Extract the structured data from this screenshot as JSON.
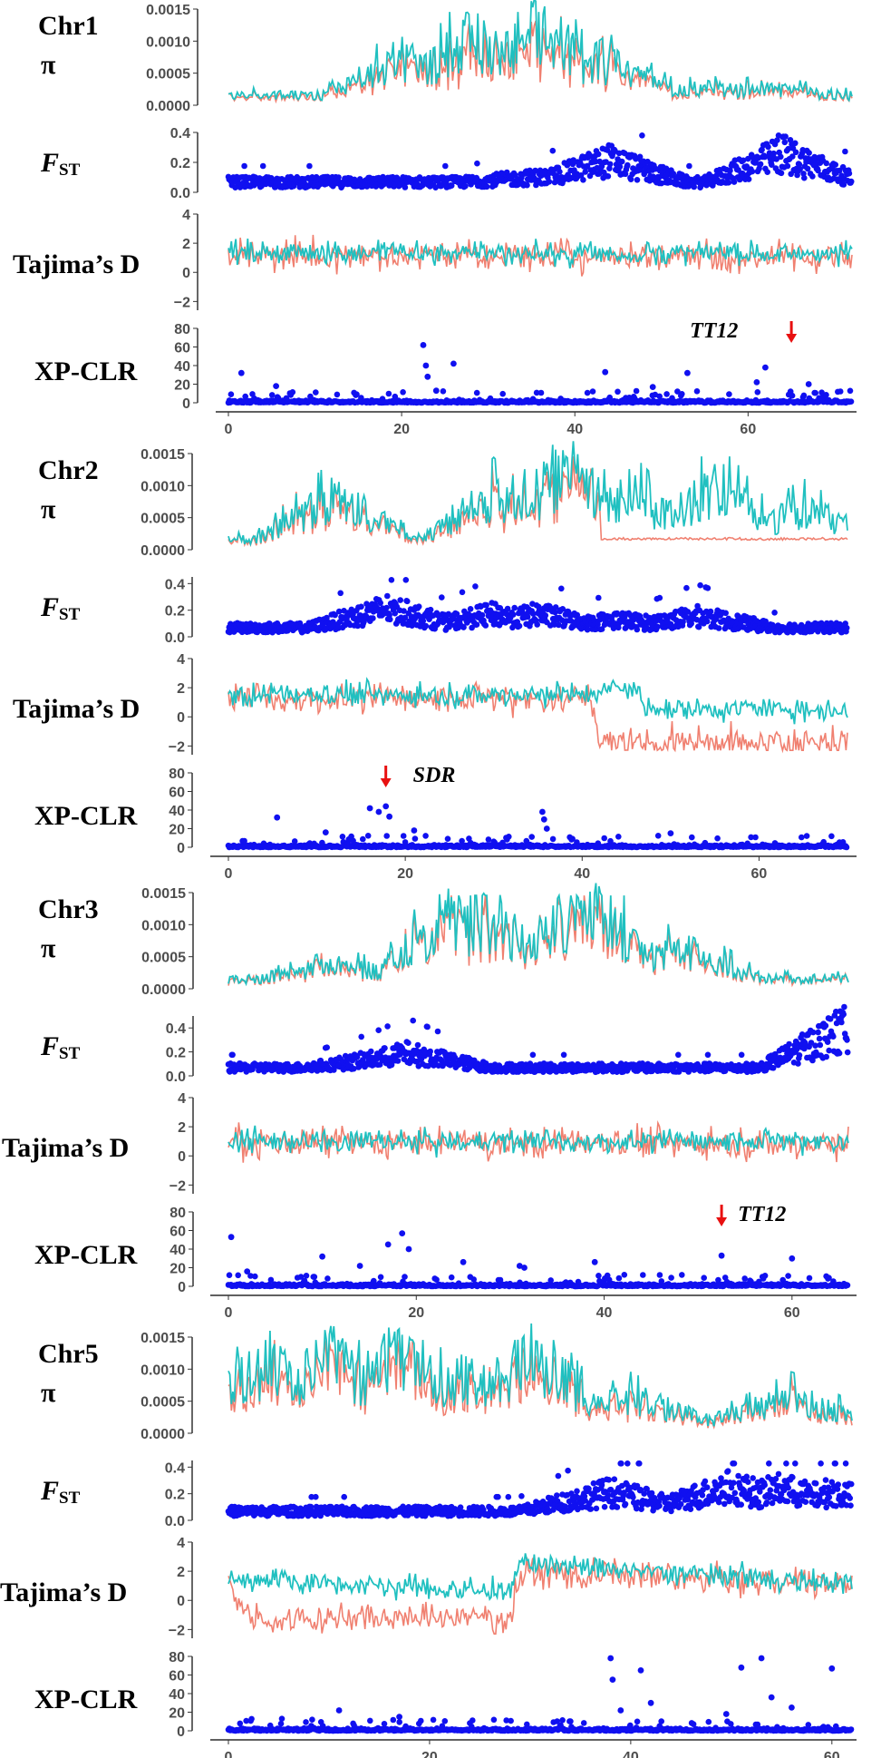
{
  "colors": {
    "pop1": "#f08070",
    "pop2": "#20c0c0",
    "fst": "#1010f0",
    "arrow": "#e81010"
  },
  "chart_data": [
    {
      "type": "line",
      "chromosome": "Chr1",
      "x_max": 72,
      "x_ticks": [
        "0",
        "20",
        "40",
        "60"
      ],
      "panels": {
        "pi": {
          "label": "π",
          "ylim": [
            0,
            0.0015
          ],
          "y_ticks": [
            "0.0000",
            "0.0005",
            "0.0010",
            "0.0015"
          ],
          "y_tick_values": [
            0,
            0.0005,
            0.001,
            0.0015
          ]
        },
        "fst": {
          "label_main": "F",
          "label_sub": "ST",
          "ylim": [
            0,
            0.4
          ],
          "y_ticks": [
            "0.0",
            "0.2",
            "0.4"
          ],
          "y_tick_values": [
            0,
            0.2,
            0.4
          ]
        },
        "tajima": {
          "label": "Tajima’s D",
          "ylim": [
            -2.6,
            4
          ],
          "y_ticks": [
            "−2",
            "0",
            "2",
            "4"
          ],
          "y_tick_values": [
            -2,
            0,
            2,
            4
          ]
        },
        "xpclr": {
          "label": "XP-CLR",
          "ylim": [
            0,
            80
          ],
          "y_ticks": [
            "0",
            "20",
            "40",
            "60",
            "80"
          ],
          "y_tick_values": [
            0,
            20,
            40,
            60,
            80
          ]
        }
      },
      "pi_hot": [
        [
          20,
          0.0008
        ],
        [
          28,
          0.0012
        ],
        [
          36,
          0.0014
        ],
        [
          44,
          0.0007
        ],
        [
          55,
          0.0003
        ],
        [
          62,
          0.0003
        ]
      ],
      "pi_pop1_ratio": 0.8,
      "fst_hot": [
        [
          36,
          0.12
        ],
        [
          44,
          0.25
        ],
        [
          64,
          0.3
        ]
      ],
      "tajima_pop1": [
        [
          0,
          1.2
        ],
        [
          72,
          1.0
        ]
      ],
      "tajima_pop2": [
        [
          0,
          1.4
        ],
        [
          72,
          1.3
        ]
      ],
      "xpclr_peaks": [
        [
          1.5,
          32
        ],
        [
          5.5,
          18
        ],
        [
          22.5,
          62
        ],
        [
          22.8,
          40
        ],
        [
          23,
          28
        ],
        [
          24,
          13
        ],
        [
          26,
          42
        ],
        [
          43.5,
          33
        ],
        [
          49,
          17
        ],
        [
          53,
          32
        ],
        [
          61,
          22
        ],
        [
          62,
          38
        ],
        [
          67,
          20
        ]
      ],
      "annotation": {
        "label": "TT12",
        "x": 65
      }
    },
    {
      "type": "line",
      "chromosome": "Chr2",
      "x_max": 70,
      "x_ticks": [
        "0",
        "20",
        "40",
        "60"
      ],
      "panels": {
        "pi": {
          "label": "π",
          "ylim": [
            0,
            0.0015
          ],
          "y_ticks": [
            "0.0000",
            "0.0005",
            "0.0010",
            "0.0015"
          ],
          "y_tick_values": [
            0,
            0.0005,
            0.001,
            0.0015
          ]
        },
        "fst": {
          "label_main": "F",
          "label_sub": "ST",
          "ylim": [
            0,
            0.45
          ],
          "y_ticks": [
            "0.0",
            "0.2",
            "0.4"
          ],
          "y_tick_values": [
            0,
            0.2,
            0.4
          ]
        },
        "tajima": {
          "label": "Tajima’s D",
          "ylim": [
            -2.6,
            4
          ],
          "y_ticks": [
            "−2",
            "0",
            "2",
            "4"
          ],
          "y_tick_values": [
            -2,
            0,
            2,
            4
          ]
        },
        "xpclr": {
          "label": "XP-CLR",
          "ylim": [
            0,
            80
          ],
          "y_ticks": [
            "0",
            "20",
            "40",
            "60",
            "80"
          ],
          "y_tick_values": [
            0,
            20,
            40,
            60,
            80
          ]
        }
      },
      "pi_hot": [
        [
          12,
          0.0009
        ],
        [
          30,
          0.0009
        ],
        [
          38,
          0.0014
        ],
        [
          45,
          0.001
        ],
        [
          55,
          0.0011
        ],
        [
          65,
          0.0007
        ]
      ],
      "pi_pop1_drop": 42,
      "pi_pop1_ratio": 0.85,
      "fst_hot": [
        [
          18,
          0.25
        ],
        [
          30,
          0.2
        ],
        [
          35,
          0.2
        ],
        [
          44,
          0.15
        ],
        [
          53,
          0.18
        ]
      ],
      "tajima_pop1": [
        [
          0,
          1.3
        ],
        [
          41,
          1.2
        ],
        [
          42,
          -1.8
        ],
        [
          70,
          -1.8
        ]
      ],
      "tajima_pop2": [
        [
          0,
          1.5
        ],
        [
          40,
          1.6
        ],
        [
          46,
          2.2
        ],
        [
          47,
          0.6
        ],
        [
          70,
          0.5
        ]
      ],
      "xpclr_peaks": [
        [
          5.5,
          32
        ],
        [
          11,
          16
        ],
        [
          16,
          42
        ],
        [
          17,
          38
        ],
        [
          17.8,
          44
        ],
        [
          18.2,
          33
        ],
        [
          21,
          18
        ],
        [
          35.5,
          38
        ],
        [
          35.7,
          30
        ],
        [
          36,
          20
        ],
        [
          50,
          15
        ]
      ],
      "annotation": {
        "label": "SDR",
        "x": 17.8
      }
    },
    {
      "type": "line",
      "chromosome": "Chr3",
      "x_max": 66,
      "x_ticks": [
        "0",
        "20",
        "40",
        "60"
      ],
      "panels": {
        "pi": {
          "label": "π",
          "ylim": [
            0,
            0.0015
          ],
          "y_ticks": [
            "0.0000",
            "0.0005",
            "0.0010",
            "0.0015"
          ],
          "y_tick_values": [
            0,
            0.0005,
            0.001,
            0.0015
          ]
        },
        "fst": {
          "label_main": "F",
          "label_sub": "ST",
          "ylim": [
            0,
            0.5
          ],
          "y_ticks": [
            "0.0",
            "0.2",
            "0.4"
          ],
          "y_tick_values": [
            0,
            0.2,
            0.4
          ]
        },
        "tajima": {
          "label": "Tajima’s D",
          "ylim": [
            -2.6,
            4
          ],
          "y_ticks": [
            "−2",
            "0",
            "2",
            "4"
          ],
          "y_tick_values": [
            -2,
            0,
            2,
            4
          ]
        },
        "xpclr": {
          "label": "XP-CLR",
          "ylim": [
            0,
            80
          ],
          "y_ticks": [
            "0",
            "20",
            "40",
            "60",
            "80"
          ],
          "y_tick_values": [
            0,
            20,
            40,
            60,
            80
          ]
        }
      },
      "pi_hot": [
        [
          12,
          0.0004
        ],
        [
          24,
          0.0013
        ],
        [
          28,
          0.0012
        ],
        [
          35,
          0.0011
        ],
        [
          39,
          0.0013
        ],
        [
          48,
          0.0007
        ]
      ],
      "pi_pop1_ratio": 0.9,
      "fst_hot": [
        [
          17,
          0.18
        ],
        [
          19,
          0.22
        ],
        [
          65.5,
          0.45
        ]
      ],
      "tajima_pop1": [
        [
          0,
          0.9
        ],
        [
          66,
          0.9
        ]
      ],
      "tajima_pop2": [
        [
          0,
          1.0
        ],
        [
          66,
          1.0
        ]
      ],
      "xpclr_peaks": [
        [
          0.3,
          53
        ],
        [
          2,
          16
        ],
        [
          10,
          32
        ],
        [
          14,
          22
        ],
        [
          17,
          45
        ],
        [
          18.5,
          57
        ],
        [
          19.2,
          40
        ],
        [
          25,
          26
        ],
        [
          31,
          22
        ],
        [
          31.5,
          20
        ],
        [
          39,
          26
        ],
        [
          52.5,
          33
        ],
        [
          60,
          30
        ]
      ],
      "annotation": {
        "label": "TT12",
        "x": 52.5
      }
    },
    {
      "type": "line",
      "chromosome": "Chr5",
      "x_max": 62,
      "x_ticks": [
        "0",
        "20",
        "40",
        "60"
      ],
      "panels": {
        "pi": {
          "label": "π",
          "ylim": [
            0,
            0.0015
          ],
          "y_ticks": [
            "0.0000",
            "0.0005",
            "0.0010",
            "0.0015"
          ],
          "y_tick_values": [
            0,
            0.0005,
            0.001,
            0.0015
          ]
        },
        "fst": {
          "label_main": "F",
          "label_sub": "ST",
          "ylim": [
            0,
            0.45
          ],
          "y_ticks": [
            "0.0",
            "0.2",
            "0.4"
          ],
          "y_tick_values": [
            0,
            0.2,
            0.4
          ]
        },
        "tajima": {
          "label": "Tajima’s D",
          "ylim": [
            -2.6,
            4
          ],
          "y_ticks": [
            "−2",
            "0",
            "2",
            "4"
          ],
          "y_tick_values": [
            -2,
            0,
            2,
            4
          ]
        },
        "xpclr": {
          "label": "XP-CLR",
          "ylim": [
            0,
            80
          ],
          "y_ticks": [
            "0",
            "20",
            "40",
            "60",
            "80"
          ],
          "y_tick_values": [
            0,
            20,
            40,
            60,
            80
          ]
        }
      },
      "pi_hot": [
        [
          4,
          0.0012
        ],
        [
          10,
          0.0013
        ],
        [
          17,
          0.0014
        ],
        [
          24,
          0.001
        ],
        [
          30,
          0.0013
        ],
        [
          40,
          0.0006
        ],
        [
          56,
          0.0006
        ]
      ],
      "pi_pop1_ratio": 0.8,
      "fst_hot": [
        [
          38,
          0.25
        ],
        [
          50,
          0.3
        ],
        [
          55,
          0.28
        ],
        [
          60,
          0.25
        ]
      ],
      "tajima_pop1": [
        [
          0,
          1.2
        ],
        [
          2,
          -1.2
        ],
        [
          28,
          -1.2
        ],
        [
          29,
          2.0
        ],
        [
          62,
          1.0
        ]
      ],
      "tajima_pop2": [
        [
          0,
          1.5
        ],
        [
          28,
          0.6
        ],
        [
          29,
          2.5
        ],
        [
          62,
          1.2
        ]
      ],
      "xpclr_peaks": [
        [
          11,
          22
        ],
        [
          17,
          15
        ],
        [
          38,
          78
        ],
        [
          38.2,
          55
        ],
        [
          39,
          22
        ],
        [
          41,
          65
        ],
        [
          42,
          30
        ],
        [
          49.5,
          18
        ],
        [
          51,
          68
        ],
        [
          53,
          78
        ],
        [
          54,
          36
        ],
        [
          56,
          25
        ],
        [
          60,
          67
        ]
      ],
      "annotation": null
    }
  ]
}
